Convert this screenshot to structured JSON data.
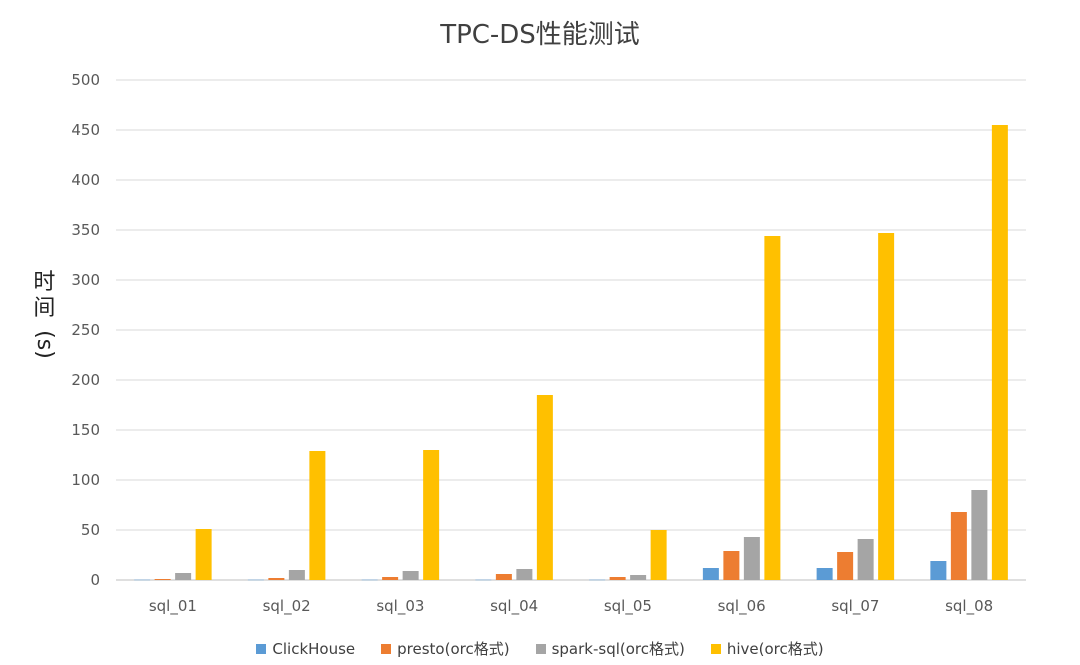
{
  "chart_data": {
    "type": "bar",
    "title": "TPC-DS性能测试",
    "ylabel": "时间(s)",
    "ylabel_parts": [
      "时",
      "间",
      "(s)"
    ],
    "xlabel": "",
    "ylim": [
      0,
      500
    ],
    "yticks": [
      0,
      50,
      100,
      150,
      200,
      250,
      300,
      350,
      400,
      450,
      500
    ],
    "grid": true,
    "legend_position": "bottom",
    "categories": [
      "sql_01",
      "sql_02",
      "sql_03",
      "sql_04",
      "sql_05",
      "sql_06",
      "sql_07",
      "sql_08"
    ],
    "series": [
      {
        "name": "ClickHouse",
        "color": "#5b9bd5",
        "values": [
          0.3,
          0.3,
          0.3,
          0.3,
          0.3,
          12,
          12,
          19
        ]
      },
      {
        "name": "presto(orc格式)",
        "color": "#ed7d31",
        "values": [
          1,
          2,
          3,
          6,
          3,
          29,
          28,
          68
        ]
      },
      {
        "name": "spark-sql(orc格式)",
        "color": "#a5a5a5",
        "values": [
          7,
          10,
          9,
          11,
          5,
          43,
          41,
          90
        ]
      },
      {
        "name": "hive(orc格式)",
        "color": "#ffc000",
        "values": [
          51,
          129,
          130,
          185,
          50,
          344,
          347,
          455
        ]
      }
    ]
  }
}
